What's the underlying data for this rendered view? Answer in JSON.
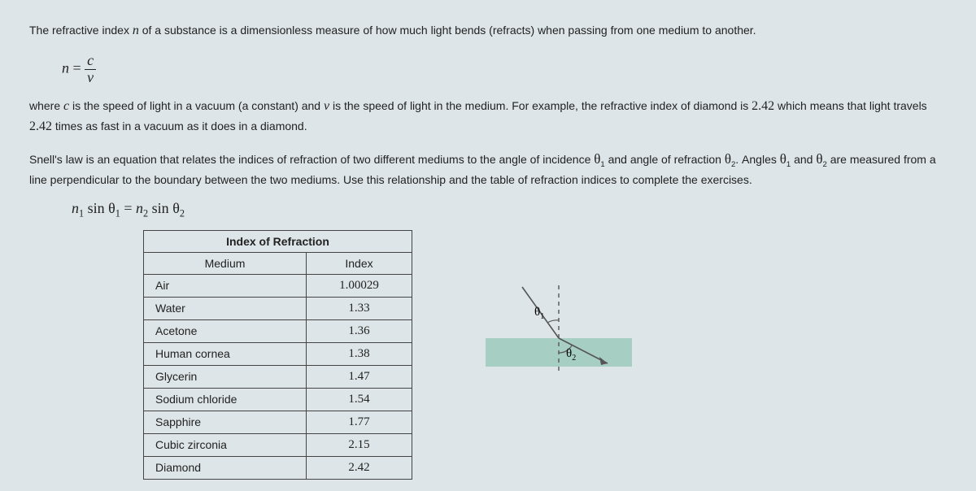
{
  "intro": {
    "p1_a": "The refractive index ",
    "p1_var_n": "n",
    "p1_b": " of a substance is a dimensionless measure of how much light bends (refracts) when passing from one medium to another."
  },
  "formula1": {
    "lhs": "n",
    "eq": " = ",
    "num": "c",
    "den": "v"
  },
  "p2": {
    "a": "where ",
    "c_var": "c",
    "b": " is the speed of light in a vacuum (a constant) and ",
    "v_var": "v",
    "c": " is the speed of light in the medium. For example, the refractive index of diamond is ",
    "val": "2.42",
    "d": " which means that light travels ",
    "val2": "2.42",
    "e": " times as fast in a vacuum as it does in a diamond."
  },
  "p3": {
    "a": "Snell's law is an equation that relates the indices of refraction of two different mediums to the angle of incidence ",
    "t1": "θ",
    "s1": "1",
    "b": " and angle of refraction ",
    "t2": "θ",
    "s2": "2",
    "c": ". Angles ",
    "t3": "θ",
    "s3": "1",
    "d": " and ",
    "t4": "θ",
    "s4": "2",
    "e": " are measured from a line perpendicular to the boundary between the two mediums. Use this relationship and the table of refraction indices to complete the exercises."
  },
  "snell": {
    "n1": "n",
    "sub1": "1",
    "sin": " sin ",
    "th1": "θ",
    "tsub1": "1",
    "eq": " = ",
    "n2": "n",
    "sub2": "2",
    "th2": "θ",
    "tsub2": "2"
  },
  "table": {
    "title": "Index of Refraction",
    "col1": "Medium",
    "col2": "Index",
    "rows": [
      {
        "m": "Air",
        "i": "1.00029"
      },
      {
        "m": "Water",
        "i": "1.33"
      },
      {
        "m": "Acetone",
        "i": "1.36"
      },
      {
        "m": "Human cornea",
        "i": "1.38"
      },
      {
        "m": "Glycerin",
        "i": "1.47"
      },
      {
        "m": "Sodium chloride",
        "i": "1.54"
      },
      {
        "m": "Sapphire",
        "i": "1.77"
      },
      {
        "m": "Cubic zirconia",
        "i": "2.15"
      },
      {
        "m": "Diamond",
        "i": "2.42"
      }
    ]
  },
  "diagram": {
    "theta1_label": "θ",
    "theta1_sub": "1",
    "theta2_label": "θ",
    "theta2_sub": "2",
    "colors": {
      "normal_dash": "#555555",
      "ray": "#555555",
      "arrow": "#555555",
      "medium_fill": "#a7cec2",
      "bg": "#dde5e8"
    }
  }
}
